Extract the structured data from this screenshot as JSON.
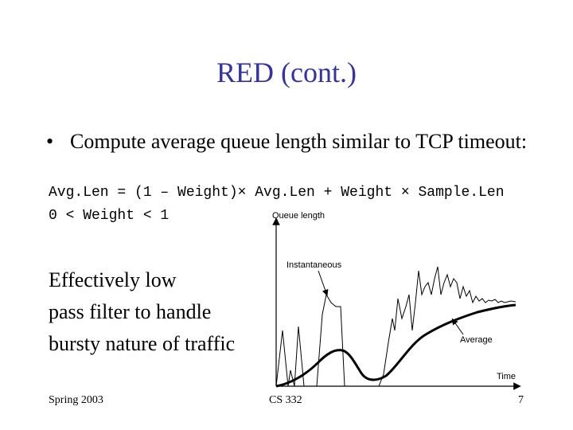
{
  "slide": {
    "title": "RED (cont.)",
    "bullet_symbol": "•",
    "bullet_text": "Compute average queue length similar to TCP timeout:",
    "formula_line1": "Avg.Len = (1 – Weight)× Avg.Len + Weight × Sample.Len",
    "formula_line2": "0 < Weight < 1",
    "description_lines": [
      "Effectively low",
      "pass filter to handle",
      "bursty nature of traffic"
    ]
  },
  "figure": {
    "y_axis_label": "Queue length",
    "x_axis_label": "Time",
    "instantaneous_label": "Instantaneous",
    "average_label": "Average",
    "line_color": "#000000"
  },
  "footer": {
    "left": "Spring 2003",
    "center": "CS 332",
    "right": "7"
  }
}
